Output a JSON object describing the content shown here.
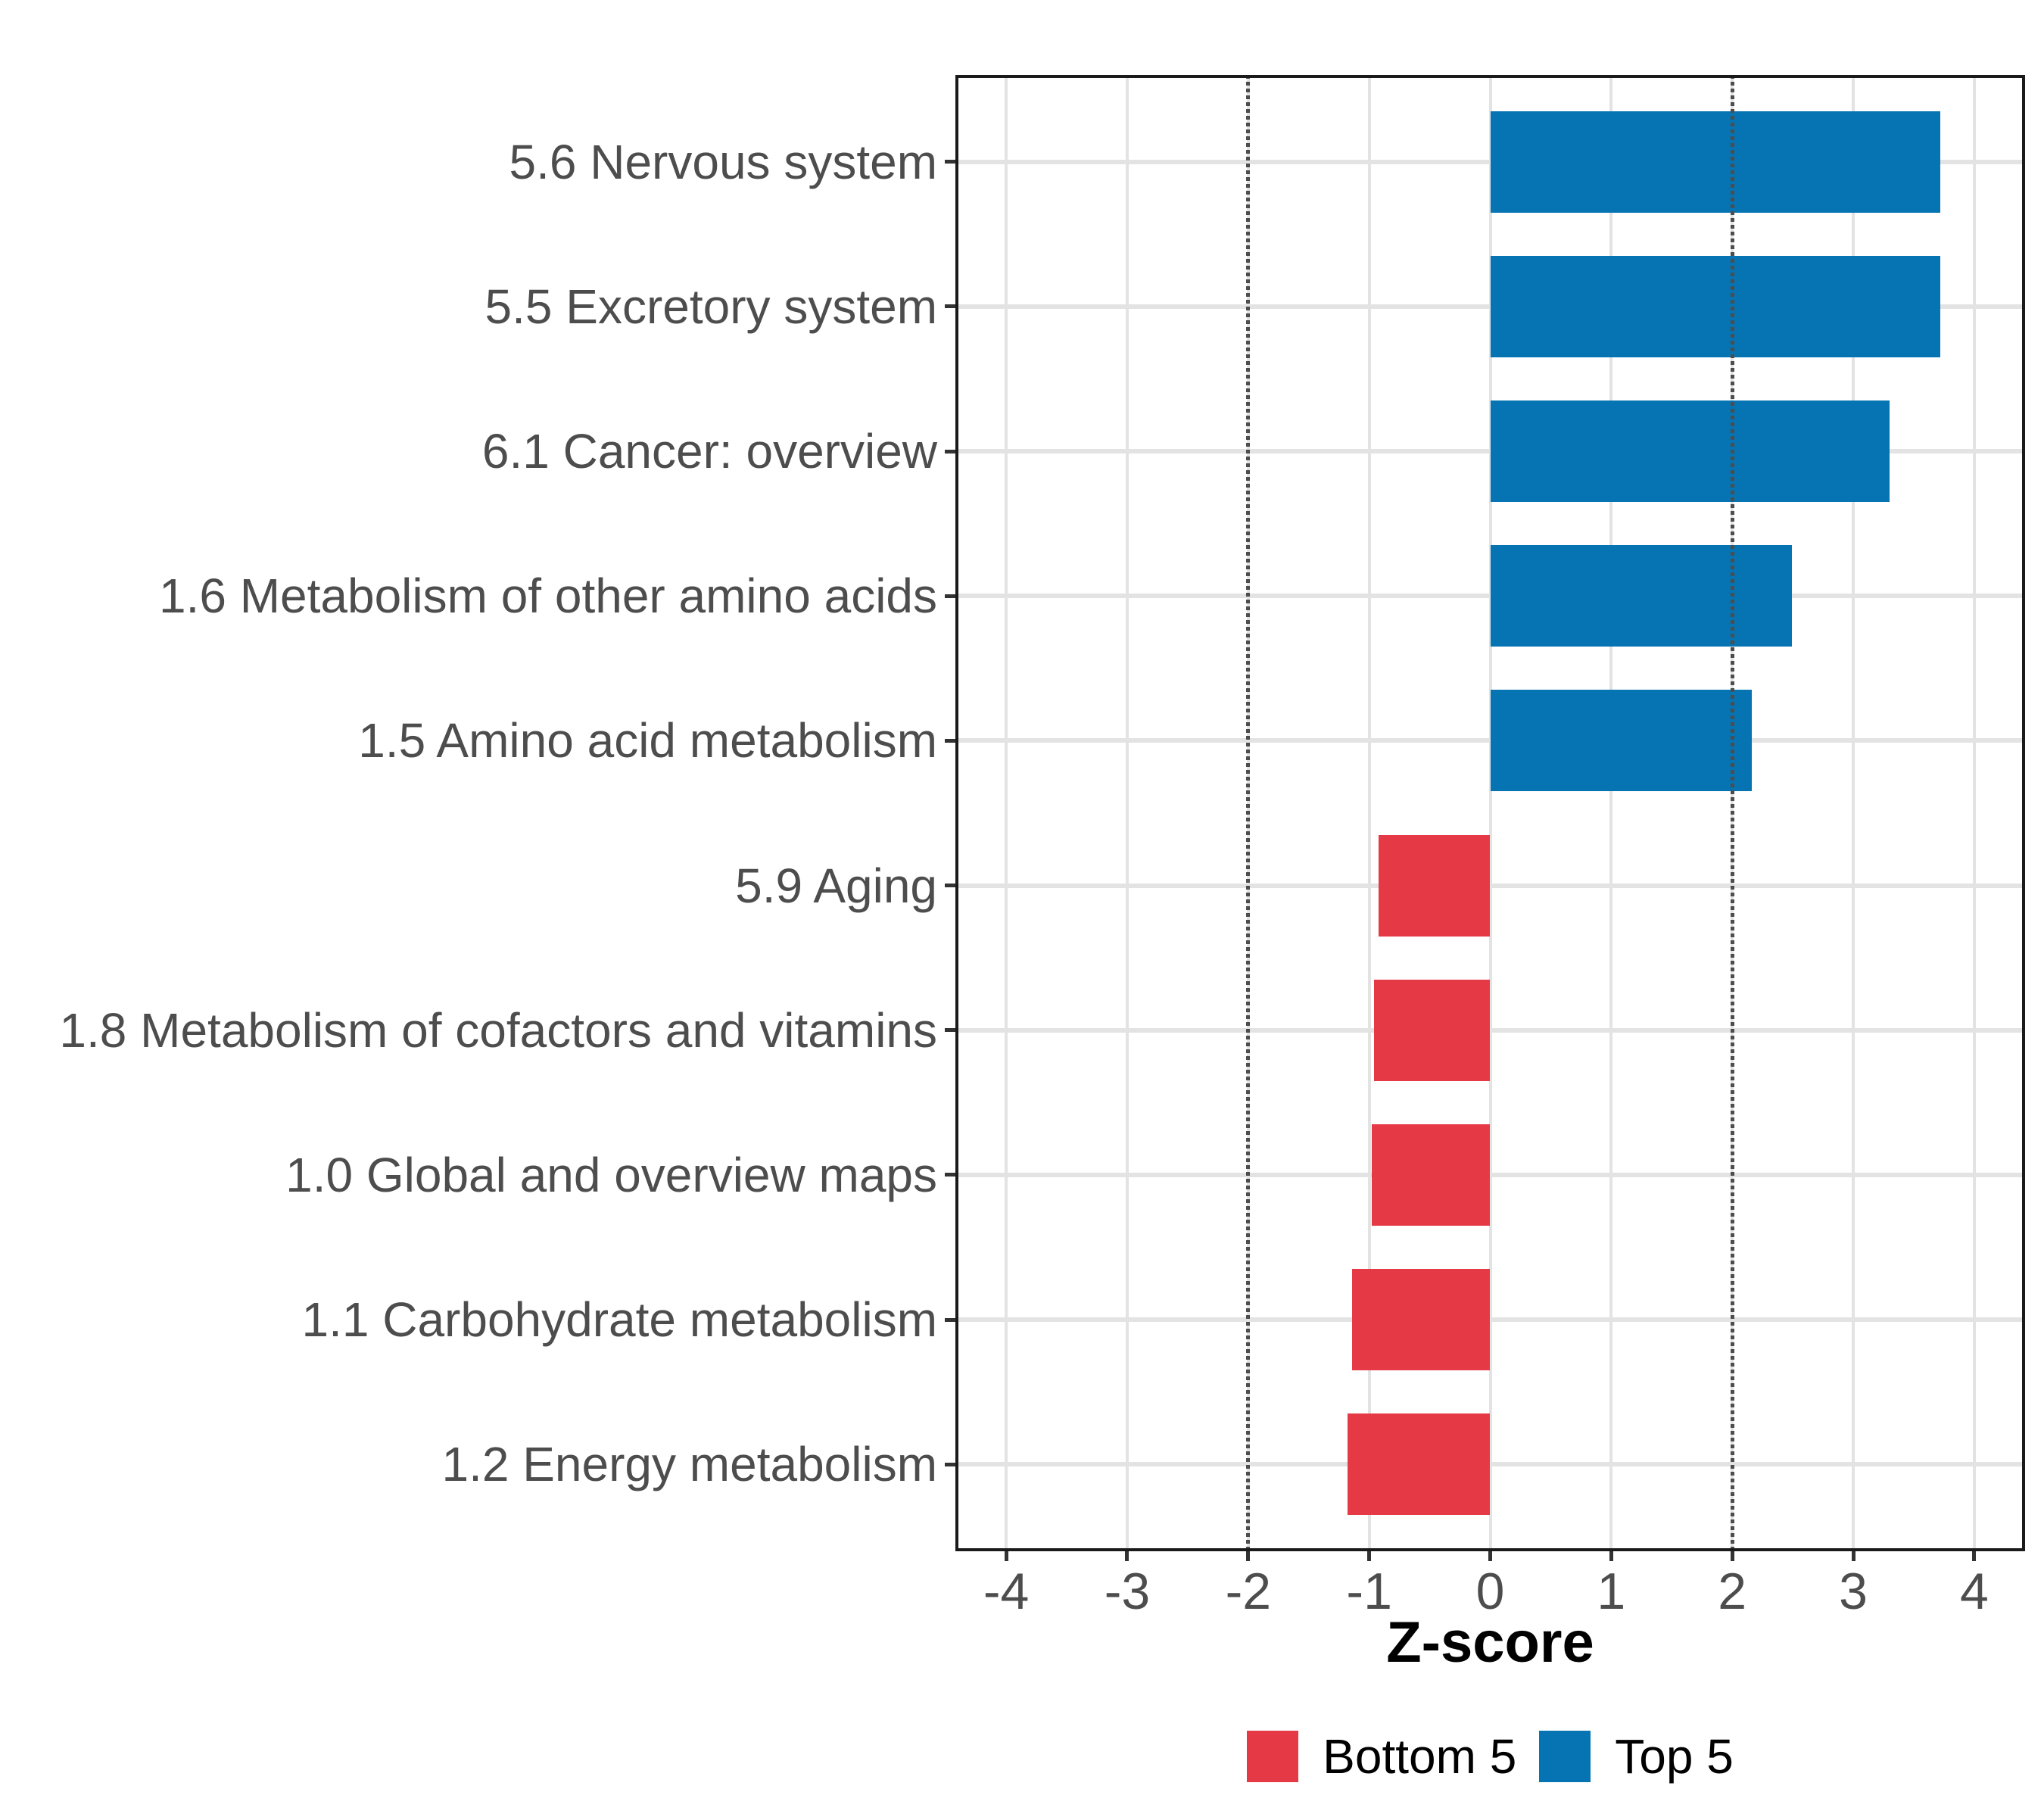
{
  "chart_data": {
    "type": "bar",
    "orientation": "horizontal",
    "title": "",
    "xlabel": "Z-score",
    "ylabel": "",
    "categories": [
      "5.6 Nervous system",
      "5.5 Excretory system",
      "6.1 Cancer: overview",
      "1.6 Metabolism of other amino acids",
      "1.5 Amino acid metabolism",
      "5.9 Aging",
      "1.8 Metabolism of cofactors and vitamins",
      "1.0 Global and overview maps",
      "1.1 Carbohydrate metabolism",
      "1.2 Energy metabolism"
    ],
    "values": [
      3.72,
      3.72,
      3.3,
      2.49,
      2.16,
      -0.92,
      -0.96,
      -0.98,
      -1.14,
      -1.18
    ],
    "groups": [
      "Top 5",
      "Top 5",
      "Top 5",
      "Top 5",
      "Top 5",
      "Bottom 5",
      "Bottom 5",
      "Bottom 5",
      "Bottom 5",
      "Bottom 5"
    ],
    "group_colors": {
      "Top 5": "#0674B2",
      "Bottom 5": "#E63946"
    },
    "x_ticks": [
      -4,
      -3,
      -2,
      -1,
      0,
      1,
      2,
      3,
      4
    ],
    "xlim": [
      -4.42,
      4.42
    ],
    "reference_lines": [
      -2,
      2
    ],
    "grid": true,
    "panel_background": "#FFFFFF",
    "gridline_color": "#E3E3E3",
    "reference_line_color": "#4D4D4D",
    "axis_text_color": "#4D4D4D",
    "legend_position": "bottom",
    "legend": [
      {
        "label": "Bottom 5",
        "color": "#E63946"
      },
      {
        "label": "Top 5",
        "color": "#0674B2"
      }
    ]
  }
}
